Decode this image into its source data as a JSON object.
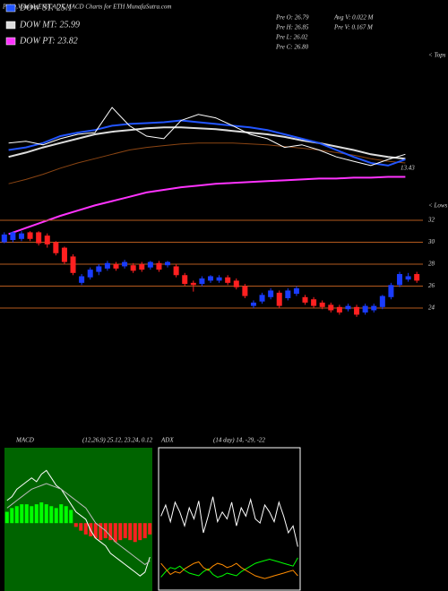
{
  "header": {
    "title": "Price,Volume,EMA,ADX,MACD Charts for ETH MunafaSutra.com",
    "info": [
      "Pre O: 26.79",
      "Pre H: 26.85",
      "Pre L: 26.02",
      "Pre C: 26.80",
      "Avg V: 0.022 M",
      "Pre V: 0.167 M"
    ]
  },
  "chart_data": [
    {
      "type": "line",
      "ylim": [
        12,
        34
      ],
      "annotations": [
        "13.43",
        "< Tops"
      ],
      "series": [
        {
          "color": "#8b4513",
          "values": [
            19.0,
            19.5,
            20.1,
            20.8,
            21.4,
            21.9,
            22.4,
            22.9,
            23.2,
            23.4,
            23.6,
            23.7,
            23.7,
            23.7,
            23.6,
            23.5,
            23.3,
            23.1,
            22.9,
            22.6,
            22.3,
            21.9,
            21.6,
            21.4
          ]
        },
        {
          "name": "DOW PT: 23.82",
          "color": "#ff33ff",
          "values": [
            13.2,
            13.9,
            14.6,
            15.3,
            15.9,
            16.5,
            17.0,
            17.5,
            18.0,
            18.3,
            18.6,
            18.8,
            19.0,
            19.1,
            19.2,
            19.3,
            19.4,
            19.5,
            19.6,
            19.6,
            19.7,
            19.7,
            19.8,
            19.8
          ]
        },
        {
          "name": "DOW MT: 25.99",
          "color": "#dddddd",
          "values": [
            22.1,
            22.6,
            23.2,
            23.7,
            24.2,
            24.7,
            25.0,
            25.2,
            25.4,
            25.5,
            25.5,
            25.4,
            25.3,
            25.1,
            24.9,
            24.7,
            24.4,
            24.0,
            23.7,
            23.3,
            22.9,
            22.4,
            22.1,
            21.9
          ]
        },
        {
          "name": "DOW ST: 25.1",
          "color": "#2255ff",
          "values": [
            22.9,
            23.2,
            23.7,
            24.5,
            24.9,
            25.2,
            25.7,
            25.9,
            26.0,
            26.1,
            26.3,
            26.1,
            25.9,
            25.7,
            25.5,
            25.2,
            24.7,
            24.2,
            23.7,
            22.9,
            22.1,
            21.4,
            21.1,
            21.8
          ]
        },
        {
          "color": "#ffffff",
          "values": [
            23.7,
            23.9,
            23.5,
            24.2,
            24.7,
            24.9,
            27.8,
            25.7,
            24.5,
            24.2,
            26.3,
            27.0,
            26.6,
            25.7,
            24.7,
            24.2,
            23.2,
            23.5,
            22.9,
            22.1,
            21.6,
            21.1,
            21.8,
            22.4
          ]
        }
      ]
    },
    {
      "type": "candlestick",
      "ylim": [
        22.7,
        33.3
      ],
      "yticks": [
        32,
        30,
        28,
        26,
        24
      ],
      "grid": true,
      "up_color": "#1a3cff",
      "down_color": "#ff2020",
      "annotations": [
        "< Lows"
      ],
      "open": [
        30.0,
        30.2,
        30.3,
        30.9,
        30.9,
        30.6,
        30.0,
        29.5,
        28.7,
        26.3,
        26.8,
        27.3,
        27.6,
        28.0,
        27.8,
        27.9,
        28.0,
        27.7,
        28.1,
        27.9,
        27.8,
        27.0,
        26.3,
        26.2,
        26.5,
        26.5,
        26.8,
        26.5,
        26.0,
        24.2,
        24.6,
        25.0,
        25.4,
        24.9,
        25.3,
        25.0,
        24.8,
        24.5,
        24.3,
        24.1,
        23.9,
        24.1,
        23.6,
        23.8,
        24.1,
        25.0,
        26.1,
        26.6,
        27.1
      ],
      "high": [
        30.9,
        31.0,
        31.0,
        31.0,
        31.0,
        30.8,
        30.1,
        29.6,
        28.9,
        27.1,
        27.7,
        28.0,
        28.3,
        28.2,
        28.4,
        28.1,
        28.2,
        28.3,
        28.3,
        28.3,
        28.0,
        27.2,
        26.5,
        26.9,
        27.0,
        27.0,
        27.0,
        26.7,
        26.2,
        24.7,
        25.4,
        25.8,
        25.6,
        25.8,
        26.0,
        25.2,
        25.0,
        24.7,
        24.5,
        24.3,
        24.4,
        24.3,
        24.4,
        24.4,
        25.2,
        26.3,
        27.3,
        27.2,
        27.3
      ],
      "low": [
        29.9,
        30.0,
        30.1,
        30.1,
        29.7,
        29.5,
        28.8,
        28.0,
        27.0,
        26.1,
        26.6,
        27.0,
        27.4,
        27.4,
        27.6,
        27.2,
        27.3,
        27.5,
        27.3,
        27.7,
        26.8,
        26.0,
        25.5,
        26.0,
        26.3,
        26.3,
        26.1,
        25.7,
        24.9,
        24.0,
        24.4,
        24.8,
        24.0,
        24.7,
        25.1,
        24.3,
        24.0,
        23.9,
        23.6,
        23.4,
        23.7,
        23.2,
        23.4,
        23.6,
        23.9,
        24.8,
        25.9,
        26.4,
        26.3
      ],
      "close": [
        30.7,
        30.9,
        30.8,
        30.3,
        29.9,
        29.8,
        29.0,
        28.2,
        27.2,
        26.9,
        27.5,
        27.8,
        28.1,
        27.6,
        28.2,
        27.4,
        27.5,
        28.2,
        27.5,
        28.2,
        27.0,
        26.2,
        26.1,
        26.7,
        26.9,
        26.8,
        26.3,
        25.9,
        25.1,
        24.5,
        25.2,
        25.6,
        24.2,
        25.6,
        25.8,
        24.5,
        24.2,
        24.1,
        23.8,
        23.6,
        24.2,
        23.4,
        24.2,
        24.2,
        25.1,
        26.1,
        27.1,
        26.9,
        26.5
      ]
    },
    {
      "type": "combo",
      "title": "MACD",
      "subtitle": "(12,26,9) 25.12, 23.24, 0.12",
      "ylim": [
        -1.8,
        2.0
      ],
      "up_color": "#00ff00",
      "down_color": "#ff2020",
      "histogram": [
        0.3,
        0.4,
        0.45,
        0.5,
        0.5,
        0.45,
        0.5,
        0.55,
        0.5,
        0.45,
        0.4,
        0.5,
        0.45,
        0.35,
        -0.1,
        -0.2,
        -0.3,
        -0.35,
        -0.4,
        -0.45,
        -0.4,
        -0.45,
        -0.5,
        -0.45,
        -0.4,
        -0.45,
        -0.5,
        -0.45,
        -0.4,
        -0.3
      ],
      "series": [
        {
          "color": "#ffffff",
          "values": [
            0.6,
            0.7,
            0.9,
            1.0,
            1.1,
            1.2,
            1.1,
            1.3,
            1.4,
            1.2,
            1.0,
            0.9,
            0.7,
            0.5,
            0.3,
            0.2,
            0.1,
            -0.2,
            -0.4,
            -0.5,
            -0.6,
            -0.8,
            -0.9,
            -1.0,
            -1.1,
            -1.2,
            -1.3,
            -1.4,
            -1.3,
            -0.9
          ]
        },
        {
          "color": "#bbbbbb",
          "values": [
            0.4,
            0.5,
            0.6,
            0.7,
            0.8,
            0.9,
            0.95,
            1.0,
            1.05,
            1.0,
            0.95,
            0.9,
            0.8,
            0.7,
            0.6,
            0.5,
            0.4,
            0.2,
            0.0,
            -0.1,
            -0.2,
            -0.35,
            -0.5,
            -0.6,
            -0.7,
            -0.8,
            -0.9,
            -1.0,
            -1.1,
            -1.0
          ]
        }
      ]
    },
    {
      "type": "line",
      "title": "ADX",
      "subtitle": "(14 day) 14, -29, -22",
      "ylim": [
        0,
        100
      ],
      "series": [
        {
          "color": "#ffffff",
          "values": [
            52,
            60,
            48,
            62,
            55,
            45,
            58,
            50,
            63,
            40,
            52,
            66,
            48,
            55,
            50,
            62,
            45,
            58,
            52,
            64,
            50,
            47,
            60,
            55,
            48,
            62,
            52,
            40,
            45,
            30
          ]
        },
        {
          "color": "#00ff00",
          "values": [
            8,
            12,
            15,
            14,
            16,
            13,
            11,
            10,
            9,
            12,
            14,
            10,
            8,
            9,
            11,
            10,
            9,
            12,
            14,
            16,
            18,
            19,
            20,
            21,
            20,
            19,
            18,
            17,
            16,
            22
          ]
        },
        {
          "color": "#ff8c00",
          "values": [
            18,
            14,
            10,
            12,
            11,
            14,
            16,
            18,
            19,
            15,
            13,
            16,
            18,
            17,
            15,
            16,
            18,
            15,
            13,
            11,
            9,
            8,
            7,
            8,
            9,
            10,
            11,
            12,
            13,
            9
          ]
        }
      ]
    }
  ]
}
